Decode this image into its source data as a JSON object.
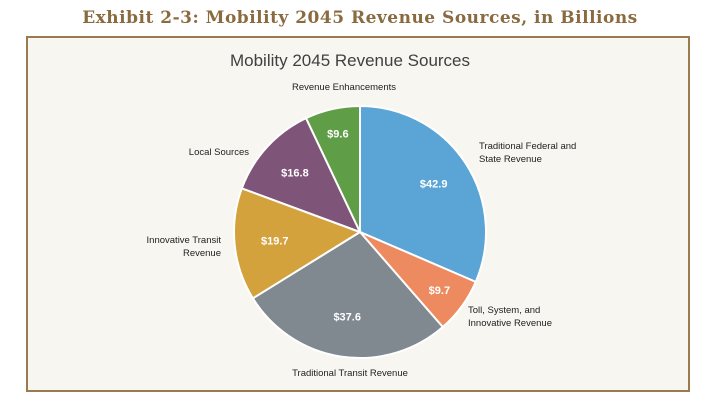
{
  "exhibit_title": "Exhibit 2-3: Mobility 2045 Revenue Sources, in Billions",
  "colors": {
    "title_brown": "#8a6a3f",
    "frame_border": "#9b7a4e",
    "frame_bg": "#f8f6f0"
  },
  "chart_data": {
    "type": "pie",
    "title": "Mobility 2045 Revenue Sources",
    "unit": "$ billions",
    "slices": [
      {
        "label": "Traditional Federal and State Revenue",
        "label_lines": [
          "Traditional Federal and",
          "State Revenue"
        ],
        "value": 42.9,
        "value_label": "$42.9",
        "color": "#5ba4d6"
      },
      {
        "label": "Toll, System, and Innovative Revenue",
        "label_lines": [
          "Toll, System, and",
          "Innovative Revenue"
        ],
        "value": 9.7,
        "value_label": "$9.7",
        "color": "#ee8a60"
      },
      {
        "label": "Traditional Transit Revenue",
        "label_lines": [
          "Traditional Transit Revenue"
        ],
        "value": 37.6,
        "value_label": "$37.6",
        "color": "#808890"
      },
      {
        "label": "Innovative Transit Revenue",
        "label_lines": [
          "Innovative Transit",
          "Revenue"
        ],
        "value": 19.7,
        "value_label": "$19.7",
        "color": "#d3a23d"
      },
      {
        "label": "Local Sources",
        "label_lines": [
          "Local Sources"
        ],
        "value": 16.8,
        "value_label": "$16.8",
        "color": "#7e5478"
      },
      {
        "label": "Revenue Enhancements",
        "label_lines": [
          "Revenue Enhancements"
        ],
        "value": 9.6,
        "value_label": "$9.6",
        "color": "#5f9d47"
      }
    ]
  }
}
